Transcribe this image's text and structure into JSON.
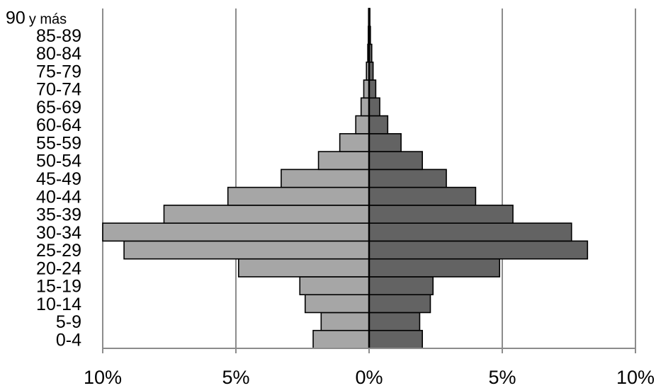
{
  "chart_data": {
    "type": "bar",
    "orientation": "horizontal",
    "layout": "population-pyramid",
    "categories": [
      "0-4",
      "5-9",
      "10-14",
      "15-19",
      "20-24",
      "25-29",
      "30-34",
      "35-39",
      "40-44",
      "45-49",
      "50-54",
      "55-59",
      "60-64",
      "65-69",
      "70-74",
      "75-79",
      "80-84",
      "85-89",
      "90 y más"
    ],
    "series": [
      {
        "side": "left",
        "color": "#a6a6a6",
        "values": [
          2.1,
          1.8,
          2.4,
          2.6,
          4.9,
          9.2,
          10.0,
          7.7,
          5.3,
          3.3,
          1.9,
          1.1,
          0.5,
          0.3,
          0.2,
          0.1,
          0.05,
          0.03,
          0.02
        ]
      },
      {
        "side": "right",
        "color": "#636363",
        "values": [
          2.0,
          1.9,
          2.3,
          2.4,
          4.9,
          8.2,
          7.6,
          5.4,
          4.0,
          2.9,
          2.0,
          1.2,
          0.7,
          0.4,
          0.25,
          0.15,
          0.1,
          0.05,
          0.03
        ]
      }
    ],
    "xlim": [
      -10,
      10
    ],
    "xticks": [
      -10,
      -5,
      0,
      5,
      10
    ],
    "xtick_labels": [
      "10%",
      "5%",
      "0%",
      "5%",
      "10%"
    ],
    "grid": "vertical",
    "title": "",
    "xlabel": "",
    "ylabel": "",
    "top_label": {
      "number": "90",
      "rest": "y más"
    }
  }
}
